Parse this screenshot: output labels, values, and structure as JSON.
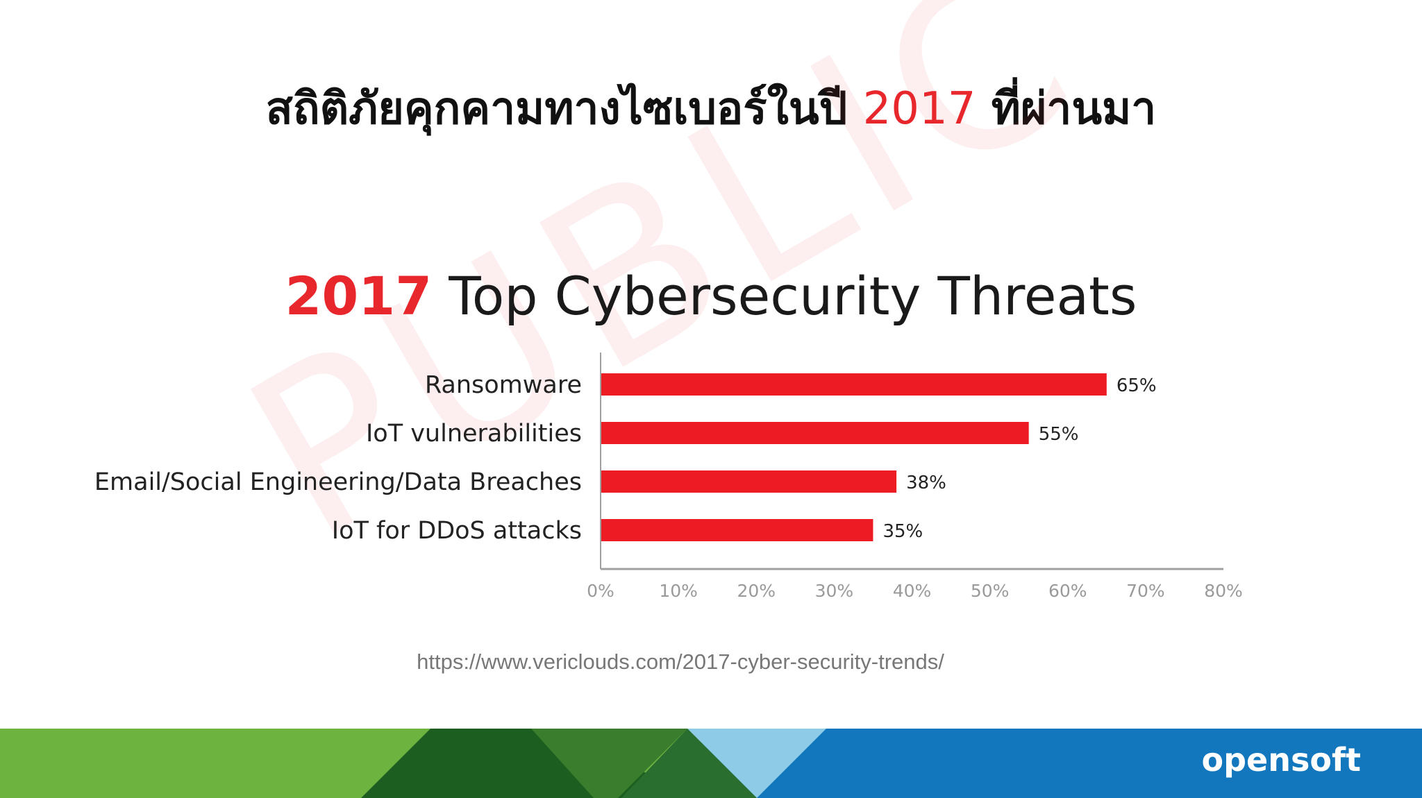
{
  "slide": {
    "title_prefix": "สถิติภัยคุกคามทางไซเบอร์ในปี",
    "title_year": "2017",
    "title_suffix": "ที่ผ่านมา",
    "watermark": "PUBLIC",
    "source_url": "https://www.vericlouds.com/2017-cyber-security-trends/",
    "brand": "opensoft"
  },
  "chart_data": {
    "type": "bar",
    "orientation": "horizontal",
    "title_year": "2017",
    "title_rest": "Top Cybersecurity Threats",
    "categories": [
      "Ransomware",
      "IoT vulnerabilities",
      "Email/Social Engineering/Data Breaches",
      "IoT for DDoS attacks"
    ],
    "values": [
      65,
      55,
      38,
      35
    ],
    "value_labels": [
      "65%",
      "55%",
      "38%",
      "35%"
    ],
    "xlim": [
      0,
      80
    ],
    "xticks": [
      "0%",
      "10%",
      "20%",
      "30%",
      "40%",
      "50%",
      "60%",
      "70%",
      "80%"
    ],
    "bar_color": "#ed1c24",
    "grid": false,
    "legend": "none"
  },
  "colors": {
    "accent": "#e8272c",
    "footer_blue": "#1277bd",
    "footer_green": "#6db33f"
  }
}
